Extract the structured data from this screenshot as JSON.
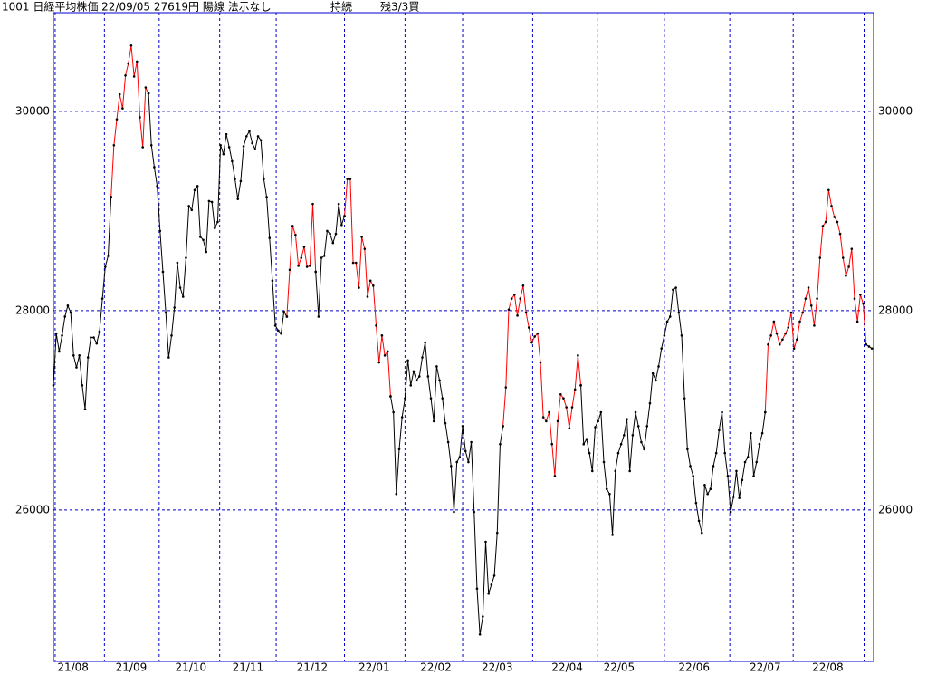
{
  "chart_data": {
    "type": "line",
    "title": "1001 日経平均株価 22/09/05 27619円 陽線 法示なし",
    "status": "持続",
    "signal": "残3/3買",
    "ylim": [
      24480,
      30990
    ],
    "yticks": [
      26000,
      28000,
      30000
    ],
    "xlim": [
      0,
      284.6
    ],
    "xgrid": [
      0.6,
      17.7,
      36.7,
      57.7,
      77.3,
      101,
      122,
      142,
      166.3,
      188.7,
      212,
      234.7,
      256.7,
      281.3
    ],
    "xticks": [
      {
        "value": 6.8,
        "label": "21/08"
      },
      {
        "value": 27,
        "label": "21/09"
      },
      {
        "value": 47.7,
        "label": "21/10"
      },
      {
        "value": 67.5,
        "label": "21/11"
      },
      {
        "value": 89.8,
        "label": "21/12"
      },
      {
        "value": 111.3,
        "label": "22/01"
      },
      {
        "value": 132.7,
        "label": "22/02"
      },
      {
        "value": 154,
        "label": "22/03"
      },
      {
        "value": 178.3,
        "label": "22/04"
      },
      {
        "value": 196.3,
        "label": "22/05"
      },
      {
        "value": 222.3,
        "label": "22/06"
      },
      {
        "value": 247,
        "label": "22/07"
      },
      {
        "value": 268.7,
        "label": "22/08"
      }
    ],
    "grid": true,
    "grid_color": "#0000cc",
    "marker_color": "#000000",
    "series": [
      {
        "color": "#000000",
        "values": [
          27250,
          27770,
          27590,
          27750,
          27940,
          28050,
          27980,
          27550,
          27430,
          27550,
          27250,
          27010,
          27530,
          27730,
          27730,
          27670,
          27790,
          28120,
          28440,
          28550,
          29140,
          null,
          null,
          null,
          null,
          null,
          null,
          null,
          null,
          null,
          null,
          null,
          null,
          30180,
          29660,
          29440,
          29250,
          28800,
          28390,
          27980,
          27530,
          27750,
          28030,
          28480,
          28230,
          28140,
          28530,
          29050,
          29010,
          29210,
          29250,
          28740,
          28710,
          28590,
          29100,
          29090,
          28830,
          28890,
          29660,
          29570,
          29770,
          29640,
          29500,
          29320,
          29120,
          29300,
          29650,
          29750,
          29800,
          29680,
          29620,
          29750,
          29710,
          29320,
          29140,
          28730,
          28300,
          27850,
          27800,
          27770,
          27990,
          27940,
          null,
          null,
          null,
          null,
          null,
          null,
          null,
          null,
          null,
          28390,
          27940,
          28530,
          28550,
          28800,
          28770,
          28680,
          28770,
          29070,
          28860,
          28950,
          null,
          null,
          null,
          null,
          null,
          null,
          null,
          null,
          null,
          null,
          null,
          null,
          null,
          null,
          null,
          27140,
          26980,
          26160,
          26610,
          26930,
          27120,
          27500,
          27250,
          27390,
          27300,
          27340,
          27530,
          27680,
          27340,
          27120,
          26890,
          27440,
          27300,
          27120,
          26870,
          26680,
          26440,
          25980,
          26480,
          26530,
          26840,
          26590,
          26480,
          26680,
          25980,
          25210,
          24750,
          24930,
          25680,
          25160,
          25250,
          25340,
          25770,
          26660,
          26840,
          null,
          null,
          null,
          null,
          null,
          null,
          null,
          null,
          null,
          null,
          null,
          null,
          null,
          null,
          null,
          null,
          null,
          null,
          null,
          null,
          null,
          null,
          null,
          null,
          null,
          null,
          27250,
          26660,
          26710,
          26570,
          26390,
          26830,
          26890,
          26980,
          26480,
          26210,
          26160,
          25750,
          26390,
          26570,
          26660,
          26750,
          26910,
          26390,
          26750,
          26980,
          26840,
          26680,
          26610,
          26840,
          27070,
          27370,
          27300,
          27440,
          27620,
          27750,
          27890,
          27940,
          28210,
          28230,
          27980,
          27750,
          27120,
          26610,
          26440,
          26340,
          26070,
          25890,
          25770,
          26250,
          26160,
          26210,
          26440,
          26570,
          26800,
          26980,
          26570,
          26340,
          25980,
          26130,
          26390,
          26120,
          26300,
          26480,
          26530,
          26770,
          26340,
          26480,
          26660,
          26770,
          26980,
          null,
          null,
          null,
          null,
          null,
          null,
          null,
          null,
          null,
          null,
          null,
          null,
          null,
          null,
          null,
          null,
          null,
          null,
          null,
          null,
          null,
          null,
          null,
          null,
          null,
          null,
          null,
          null,
          null,
          null,
          null,
          null,
          null,
          null,
          27660,
          27640,
          27620
        ]
      },
      {
        "color": "#ff0000",
        "values": [
          null,
          null,
          null,
          null,
          null,
          null,
          null,
          null,
          null,
          null,
          null,
          null,
          null,
          null,
          null,
          null,
          null,
          null,
          null,
          null,
          29140,
          29660,
          29920,
          30170,
          30030,
          30360,
          30480,
          30660,
          30350,
          30500,
          29940,
          29640,
          30240,
          30180,
          null,
          null,
          null,
          null,
          null,
          null,
          null,
          null,
          null,
          null,
          null,
          null,
          null,
          null,
          null,
          null,
          null,
          null,
          null,
          null,
          null,
          null,
          null,
          null,
          null,
          null,
          null,
          null,
          null,
          null,
          null,
          null,
          null,
          null,
          null,
          null,
          null,
          null,
          null,
          null,
          null,
          null,
          null,
          null,
          null,
          null,
          null,
          27940,
          28410,
          28850,
          28760,
          28450,
          28530,
          28640,
          28440,
          28450,
          29070,
          28390,
          null,
          null,
          null,
          null,
          null,
          null,
          null,
          null,
          null,
          28950,
          29320,
          29320,
          28480,
          28480,
          28230,
          28740,
          28620,
          28140,
          28300,
          28250,
          27850,
          27480,
          27750,
          27550,
          27590,
          27140,
          null,
          null,
          null,
          null,
          null,
          null,
          null,
          null,
          null,
          null,
          null,
          null,
          null,
          null,
          null,
          null,
          null,
          null,
          null,
          null,
          null,
          null,
          null,
          null,
          null,
          null,
          null,
          null,
          null,
          null,
          null,
          null,
          null,
          null,
          null,
          null,
          null,
          null,
          26840,
          27230,
          28010,
          28120,
          28160,
          27950,
          28120,
          28250,
          27980,
          27830,
          27680,
          27740,
          27770,
          27480,
          26930,
          26890,
          26980,
          26660,
          26340,
          26890,
          27160,
          27120,
          27030,
          26820,
          27030,
          27210,
          27550,
          27250,
          null,
          null,
          null,
          null,
          null,
          null,
          null,
          null,
          null,
          null,
          null,
          null,
          null,
          null,
          null,
          null,
          null,
          null,
          null,
          null,
          null,
          null,
          null,
          null,
          null,
          null,
          null,
          null,
          null,
          null,
          null,
          null,
          null,
          null,
          null,
          null,
          null,
          null,
          null,
          null,
          null,
          null,
          null,
          null,
          null,
          null,
          null,
          null,
          null,
          null,
          null,
          null,
          null,
          null,
          null,
          null,
          null,
          null,
          null,
          null,
          null,
          null,
          null,
          26980,
          27660,
          27750,
          27890,
          27770,
          27660,
          27710,
          27770,
          27830,
          27980,
          27620,
          27710,
          27890,
          27980,
          28120,
          28230,
          28050,
          27850,
          28120,
          28530,
          28850,
          28890,
          29210,
          29050,
          28940,
          28890,
          28770,
          28530,
          28350,
          28440,
          28620,
          28120,
          27890,
          28160,
          28070,
          27660,
          null,
          null
        ]
      }
    ]
  }
}
